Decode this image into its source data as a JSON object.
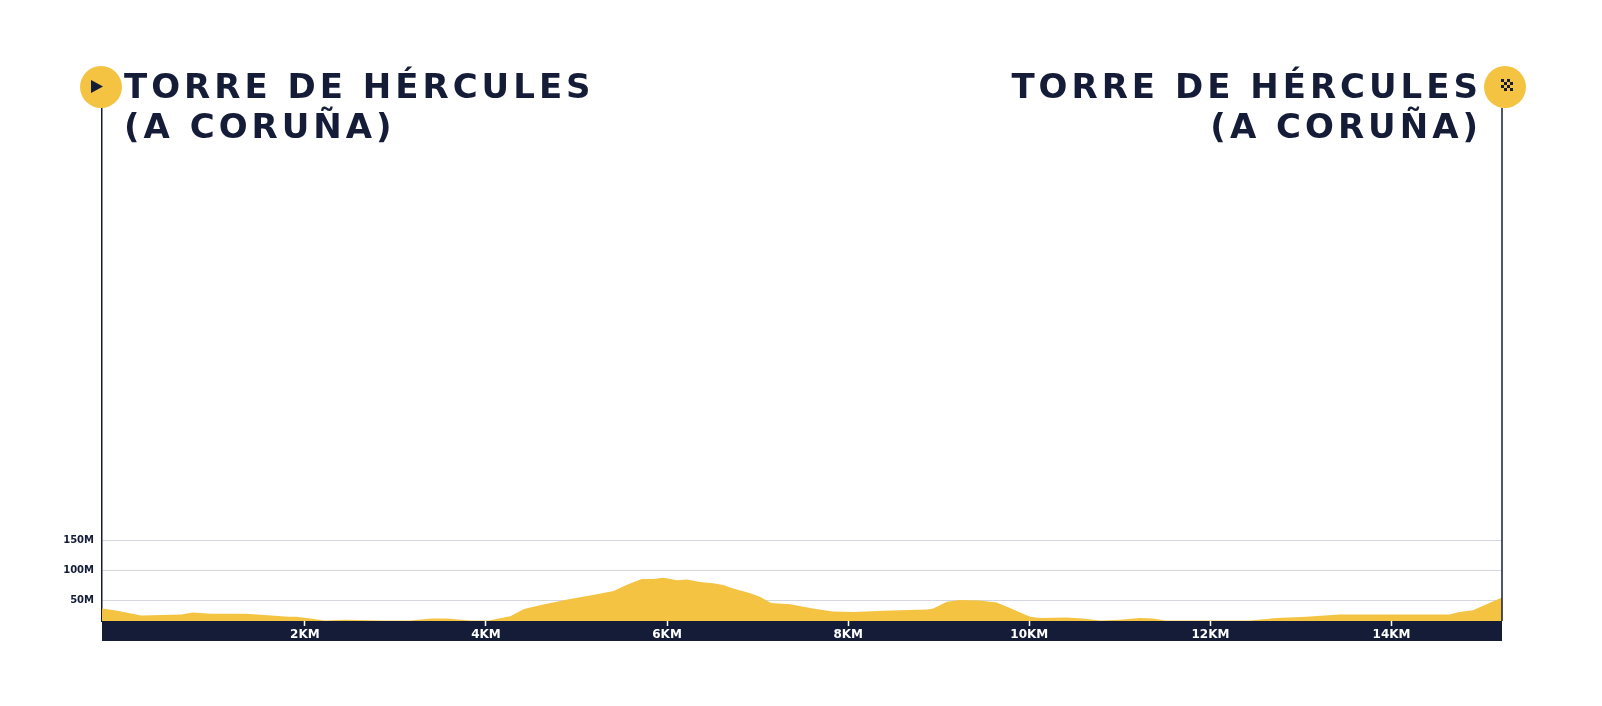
{
  "chart_data": {
    "type": "area",
    "annotations": [
      "TORRE DE HÉRCULES\n(A CORUÑA)",
      "TORRE DE HÉRCULES\n(A CORUÑA)"
    ],
    "x": [
      -0.24,
      -0.07,
      0.19,
      0.64,
      0.76,
      0.96,
      1.35,
      1.82,
      1.9,
      2.06,
      2.22,
      2.45,
      2.85,
      3.16,
      3.4,
      3.56,
      3.83,
      4.03,
      4.27,
      4.42,
      4.62,
      4.9,
      5.21,
      5.41,
      5.55,
      5.72,
      5.85,
      5.96,
      6.11,
      6.22,
      6.36,
      6.51,
      6.62,
      6.73,
      6.92,
      7.03,
      7.15,
      7.36,
      7.61,
      7.83,
      8.06,
      8.39,
      8.87,
      8.94,
      9.09,
      9.23,
      9.45,
      9.64,
      9.78,
      10.01,
      10.12,
      10.41,
      10.59,
      10.78,
      11.0,
      11.22,
      11.36,
      11.51,
      11.99,
      12.43,
      12.73,
      13.06,
      13.43,
      13.72,
      14.09,
      14.64,
      14.75,
      14.9,
      15.05,
      15.22
    ],
    "values": [
      37,
      33,
      25,
      27,
      30,
      28,
      28,
      23,
      23,
      20,
      17,
      18,
      17,
      17,
      20,
      20,
      17,
      17,
      24,
      36,
      43,
      52,
      60,
      66,
      76,
      86,
      86,
      88,
      84,
      85,
      81,
      79,
      76,
      70,
      62,
      56,
      46,
      44,
      37,
      32,
      31,
      33,
      35,
      37,
      48,
      51,
      50,
      47,
      38,
      23,
      21,
      22,
      20,
      17,
      18,
      21,
      20,
      17,
      17,
      17,
      21,
      23,
      27,
      27,
      27,
      27,
      31,
      34,
      44,
      55
    ],
    "color": "#f4c342",
    "xlim": [
      -0.24,
      15.22
    ],
    "ylim": [
      16,
      870
    ],
    "xticks": [
      {
        "value": 2,
        "label": "2KM"
      },
      {
        "value": 4,
        "label": "4KM"
      },
      {
        "value": 6,
        "label": "6KM"
      },
      {
        "value": 8,
        "label": "8KM"
      },
      {
        "value": 10,
        "label": "10KM"
      },
      {
        "value": 12,
        "label": "12KM"
      },
      {
        "value": 14,
        "label": "14KM"
      }
    ],
    "yticks": [
      {
        "value": 50,
        "label": "50M"
      },
      {
        "value": 100,
        "label": "100M"
      },
      {
        "value": 150,
        "label": "150M"
      }
    ],
    "grid": "y"
  }
}
